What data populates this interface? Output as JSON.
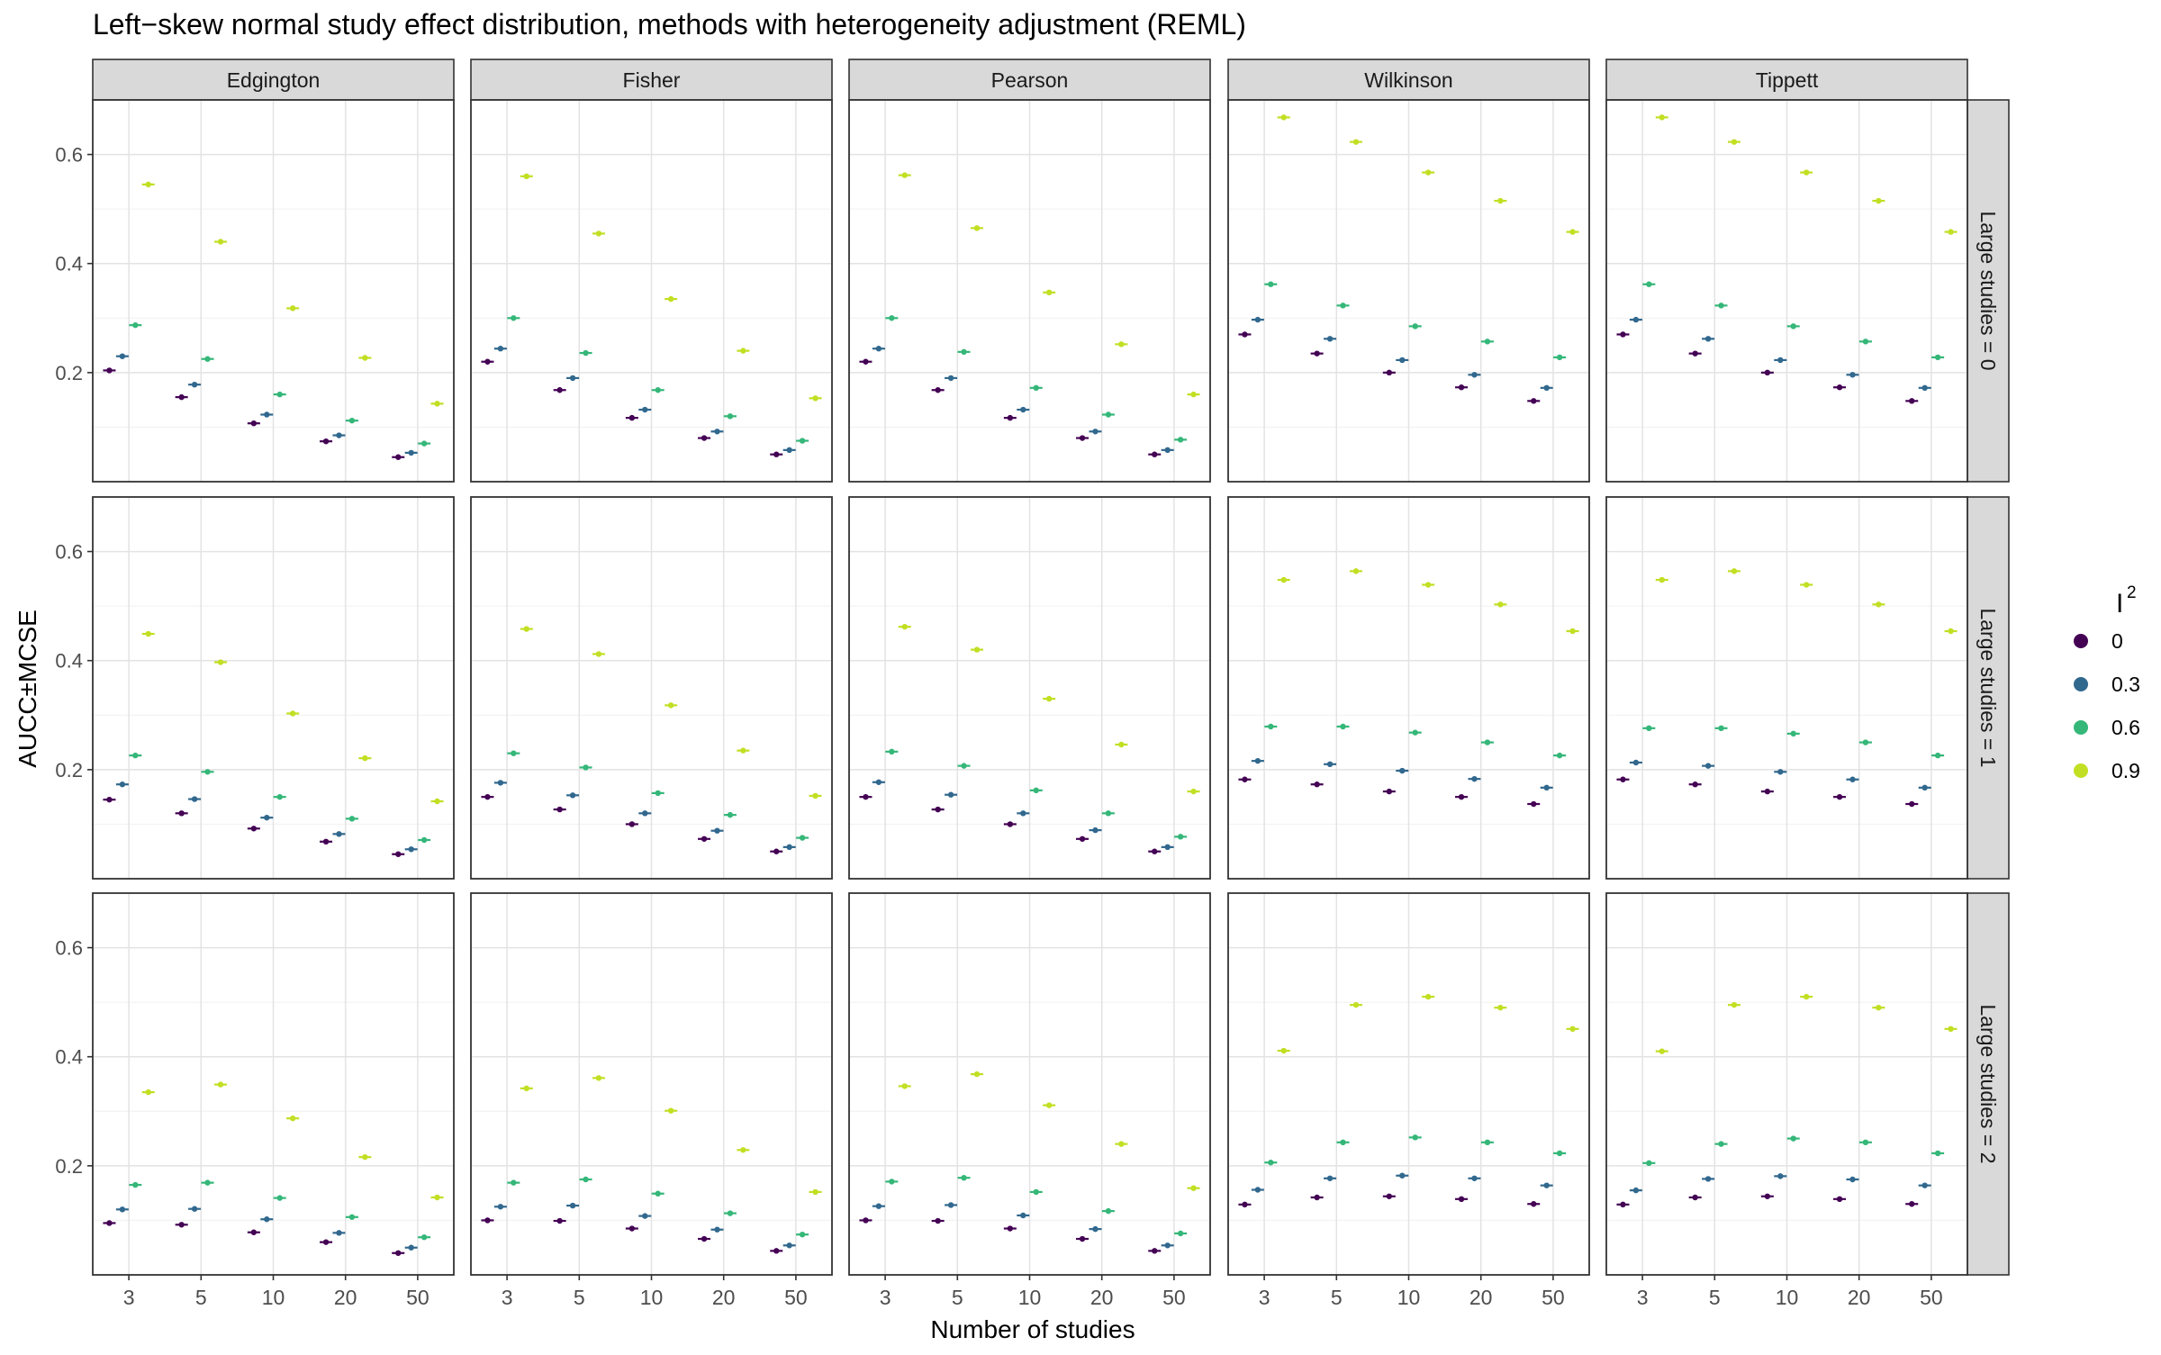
{
  "chart_data": {
    "type": "scatter",
    "title": "Left−skew normal study effect distribution, methods with heterogeneity adjustment (REML)",
    "xlabel": "Number of studies",
    "ylabel": "AUCC±MCSE",
    "x_categories": [
      "3",
      "5",
      "10",
      "20",
      "50"
    ],
    "y_ticks": [
      0.2,
      0.4,
      0.6
    ],
    "y_tick_labels": [
      "0.2",
      "0.4",
      "0.6"
    ],
    "ylim": [
      0.0,
      0.7
    ],
    "grid": true,
    "facet_cols": [
      "Edgington",
      "Fisher",
      "Pearson",
      "Wilkinson",
      "Tippett"
    ],
    "facet_rows": [
      "Large studies = 0",
      "Large studies = 1",
      "Large studies = 2"
    ],
    "legend": {
      "title": "I",
      "title_superscript": "2",
      "position": "right",
      "entries": [
        {
          "label": "0",
          "color": "#440154"
        },
        {
          "label": "0.3",
          "color": "#31688E"
        },
        {
          "label": "0.6",
          "color": "#35B779"
        },
        {
          "label": "0.9",
          "color": "#C2DF23"
        }
      ]
    },
    "panels": [
      [
        [
          [
            0.204,
            0.23,
            0.287,
            0.545
          ],
          [
            0.155,
            0.178,
            0.225,
            0.44
          ],
          [
            0.107,
            0.123,
            0.16,
            0.318
          ],
          [
            0.074,
            0.085,
            0.112,
            0.227
          ],
          [
            0.045,
            0.053,
            0.07,
            0.143
          ]
        ],
        [
          [
            0.22,
            0.244,
            0.3,
            0.56
          ],
          [
            0.168,
            0.19,
            0.236,
            0.455
          ],
          [
            0.117,
            0.132,
            0.168,
            0.335
          ],
          [
            0.08,
            0.092,
            0.12,
            0.24
          ],
          [
            0.05,
            0.058,
            0.075,
            0.153
          ]
        ],
        [
          [
            0.22,
            0.244,
            0.3,
            0.562
          ],
          [
            0.168,
            0.19,
            0.238,
            0.465
          ],
          [
            0.117,
            0.132,
            0.172,
            0.347
          ],
          [
            0.08,
            0.092,
            0.123,
            0.252
          ],
          [
            0.05,
            0.058,
            0.077,
            0.16
          ]
        ],
        [
          [
            0.27,
            0.297,
            0.362,
            0.668
          ],
          [
            0.235,
            0.262,
            0.323,
            0.623
          ],
          [
            0.2,
            0.223,
            0.285,
            0.567
          ],
          [
            0.173,
            0.196,
            0.257,
            0.515
          ],
          [
            0.148,
            0.172,
            0.228,
            0.458
          ]
        ],
        [
          [
            0.27,
            0.297,
            0.362,
            0.668
          ],
          [
            0.235,
            0.262,
            0.323,
            0.623
          ],
          [
            0.2,
            0.223,
            0.285,
            0.567
          ],
          [
            0.173,
            0.196,
            0.257,
            0.515
          ],
          [
            0.148,
            0.172,
            0.228,
            0.458
          ]
        ]
      ],
      [
        [
          [
            0.145,
            0.173,
            0.226,
            0.449
          ],
          [
            0.12,
            0.146,
            0.196,
            0.397
          ],
          [
            0.092,
            0.112,
            0.15,
            0.303
          ],
          [
            0.068,
            0.082,
            0.11,
            0.221
          ],
          [
            0.045,
            0.054,
            0.071,
            0.142
          ]
        ],
        [
          [
            0.15,
            0.176,
            0.23,
            0.458
          ],
          [
            0.127,
            0.153,
            0.204,
            0.412
          ],
          [
            0.1,
            0.12,
            0.157,
            0.318
          ],
          [
            0.073,
            0.088,
            0.117,
            0.235
          ],
          [
            0.05,
            0.058,
            0.075,
            0.152
          ]
        ],
        [
          [
            0.15,
            0.177,
            0.233,
            0.462
          ],
          [
            0.127,
            0.154,
            0.207,
            0.42
          ],
          [
            0.1,
            0.12,
            0.162,
            0.33
          ],
          [
            0.073,
            0.089,
            0.12,
            0.246
          ],
          [
            0.05,
            0.058,
            0.077,
            0.16
          ]
        ],
        [
          [
            0.182,
            0.216,
            0.279,
            0.548
          ],
          [
            0.173,
            0.21,
            0.279,
            0.564
          ],
          [
            0.16,
            0.198,
            0.268,
            0.539
          ],
          [
            0.15,
            0.183,
            0.25,
            0.503
          ],
          [
            0.137,
            0.167,
            0.226,
            0.454
          ]
        ],
        [
          [
            0.182,
            0.213,
            0.276,
            0.548
          ],
          [
            0.173,
            0.207,
            0.276,
            0.564
          ],
          [
            0.16,
            0.196,
            0.266,
            0.539
          ],
          [
            0.15,
            0.182,
            0.25,
            0.503
          ],
          [
            0.137,
            0.167,
            0.226,
            0.454
          ]
        ]
      ],
      [
        [
          [
            0.095,
            0.12,
            0.165,
            0.335
          ],
          [
            0.092,
            0.121,
            0.169,
            0.349
          ],
          [
            0.078,
            0.102,
            0.141,
            0.287
          ],
          [
            0.06,
            0.077,
            0.106,
            0.216
          ],
          [
            0.04,
            0.05,
            0.069,
            0.142
          ]
        ],
        [
          [
            0.1,
            0.125,
            0.169,
            0.342
          ],
          [
            0.099,
            0.127,
            0.175,
            0.361
          ],
          [
            0.085,
            0.108,
            0.149,
            0.301
          ],
          [
            0.066,
            0.083,
            0.113,
            0.229
          ],
          [
            0.044,
            0.054,
            0.074,
            0.152
          ]
        ],
        [
          [
            0.1,
            0.126,
            0.171,
            0.346
          ],
          [
            0.099,
            0.128,
            0.178,
            0.368
          ],
          [
            0.085,
            0.109,
            0.152,
            0.311
          ],
          [
            0.066,
            0.084,
            0.117,
            0.24
          ],
          [
            0.044,
            0.054,
            0.076,
            0.159
          ]
        ],
        [
          [
            0.129,
            0.156,
            0.206,
            0.411
          ],
          [
            0.142,
            0.177,
            0.243,
            0.495
          ],
          [
            0.144,
            0.182,
            0.252,
            0.51
          ],
          [
            0.139,
            0.177,
            0.243,
            0.49
          ],
          [
            0.13,
            0.164,
            0.223,
            0.451
          ]
        ],
        [
          [
            0.129,
            0.155,
            0.205,
            0.41
          ],
          [
            0.142,
            0.176,
            0.24,
            0.495
          ],
          [
            0.144,
            0.181,
            0.25,
            0.51
          ],
          [
            0.139,
            0.175,
            0.243,
            0.49
          ],
          [
            0.13,
            0.164,
            0.223,
            0.451
          ]
        ]
      ]
    ]
  }
}
